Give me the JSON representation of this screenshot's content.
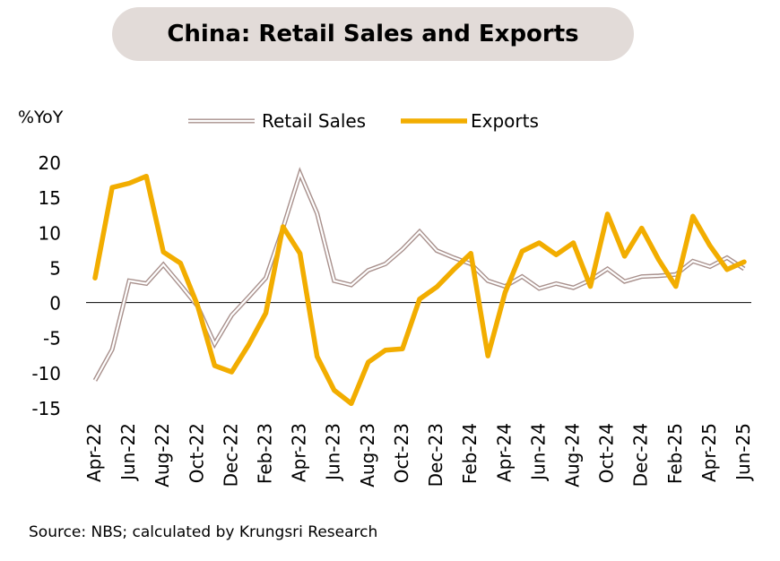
{
  "title": "China: Retail Sales and Exports",
  "source": "Source: NBS; calculated by Krungsri Research",
  "chart_data": {
    "type": "line",
    "ylabel": "%YoY",
    "ylim": [
      -15,
      20
    ],
    "yticks": [
      20,
      15,
      10,
      5,
      0,
      -5,
      -10,
      -15
    ],
    "x": [
      "Apr-22",
      "May-22",
      "Jun-22",
      "Jul-22",
      "Aug-22",
      "Sep-22",
      "Oct-22",
      "Nov-22",
      "Dec-22",
      "Jan-23",
      "Feb-23",
      "Mar-23",
      "Apr-23",
      "May-23",
      "Jun-23",
      "Jul-23",
      "Aug-23",
      "Sep-23",
      "Oct-23",
      "Nov-23",
      "Dec-23",
      "Jan-24",
      "Feb-24",
      "Mar-24",
      "Apr-24",
      "May-24",
      "Jun-24",
      "Jul-24",
      "Aug-24",
      "Sep-24",
      "Oct-24",
      "Nov-24",
      "Dec-24",
      "Jan-25",
      "Feb-25",
      "Mar-25",
      "Apr-25",
      "May-25",
      "Jun-25"
    ],
    "xtick_labels": [
      "Apr-22",
      "Jun-22",
      "Aug-22",
      "Oct-22",
      "Dec-22",
      "Feb-23",
      "Apr-23",
      "Jun-23",
      "Aug-23",
      "Oct-23",
      "Dec-23",
      "Feb-24",
      "Apr-24",
      "Jun-24",
      "Aug-24",
      "Oct-24",
      "Dec-24",
      "Feb-25",
      "Apr-25",
      "Jun-25"
    ],
    "legend": "top",
    "grid": false,
    "series": [
      {
        "name": "Retail Sales",
        "color": "#a8908c",
        "style": "double",
        "values": [
          -11.1,
          -6.7,
          3.1,
          2.7,
          5.4,
          2.5,
          -0.5,
          -5.9,
          -1.8,
          0.8,
          3.5,
          10.6,
          18.4,
          12.7,
          3.1,
          2.5,
          4.6,
          5.5,
          7.6,
          10.1,
          7.4,
          6.4,
          5.5,
          3.1,
          2.3,
          3.7,
          2.0,
          2.7,
          2.1,
          3.2,
          4.8,
          3.0,
          3.7,
          3.8,
          4.0,
          5.9,
          5.1,
          6.4,
          4.8
        ]
      },
      {
        "name": "Exports",
        "color": "#f2ad00",
        "style": "solid",
        "values": [
          3.5,
          16.4,
          17.0,
          18.0,
          7.2,
          5.6,
          -0.4,
          -9.0,
          -9.9,
          -6.0,
          -1.5,
          10.8,
          7.0,
          -7.7,
          -12.5,
          -14.4,
          -8.5,
          -6.8,
          -6.6,
          0.5,
          2.2,
          4.7,
          7.0,
          -7.6,
          1.4,
          7.3,
          8.5,
          6.8,
          8.5,
          2.3,
          12.6,
          6.6,
          10.6,
          6.1,
          2.3,
          12.3,
          8.1,
          4.7,
          5.8
        ]
      }
    ]
  }
}
